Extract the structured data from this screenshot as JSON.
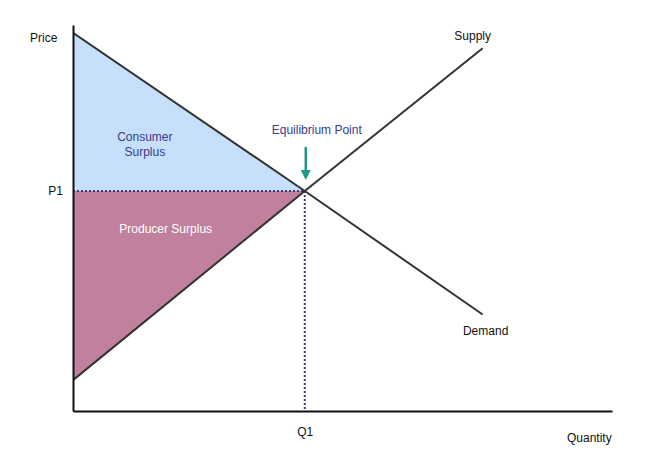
{
  "chart_data": {
    "type": "line",
    "x_label": "Quantity",
    "y_label": "Price",
    "x": [
      0,
      43,
      76
    ],
    "series": [
      {
        "name": "Demand",
        "color": "#333333",
        "values": [
          98,
          57,
          25
        ]
      },
      {
        "name": "Supply",
        "color": "#333333",
        "values": [
          8,
          57,
          94
        ]
      }
    ],
    "xlim": [
      0,
      100
    ],
    "ylim": [
      0,
      100
    ],
    "xticks": [
      {
        "value": 43,
        "label": "Q1"
      }
    ],
    "yticks": [
      {
        "value": 57,
        "label": "P1"
      }
    ],
    "annotations": {
      "consumer_surplus": "Consumer Surplus",
      "producer_surplus": "Producer Surplus",
      "equilibrium": "Equilibrium Point"
    },
    "colors": [
      "#c6e0fb",
      "#c0809e"
    ],
    "grid": false
  }
}
